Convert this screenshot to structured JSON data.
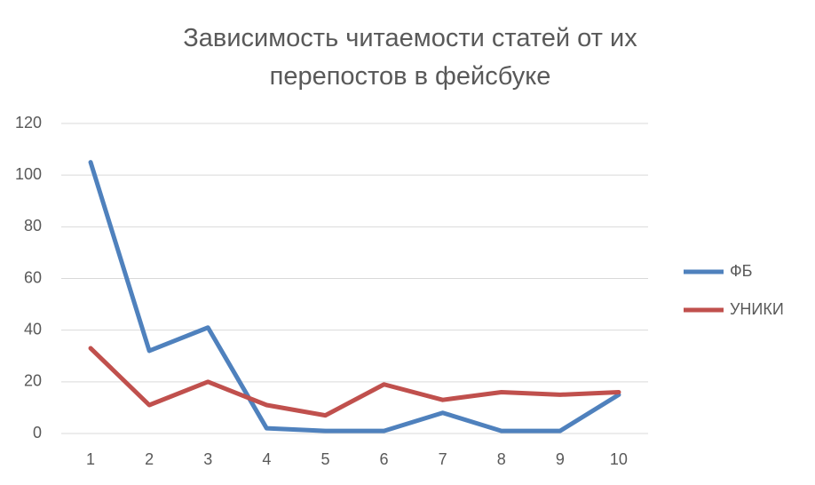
{
  "chart_data": {
    "type": "line",
    "title": "Зависимость читаемости статей от их перепостов в фейсбуке",
    "categories": [
      "1",
      "2",
      "3",
      "4",
      "5",
      "6",
      "7",
      "8",
      "9",
      "10"
    ],
    "series": [
      {
        "name": "ФБ",
        "color": "#4f81bd",
        "values": [
          105,
          32,
          41,
          2,
          1,
          1,
          8,
          1,
          1,
          15
        ]
      },
      {
        "name": "УНИКИ",
        "color": "#c0504d",
        "values": [
          33,
          11,
          20,
          11,
          7,
          19,
          13,
          16,
          15,
          16
        ]
      }
    ],
    "ylim": [
      0,
      120
    ],
    "yticks": [
      0,
      20,
      40,
      60,
      80,
      100,
      120
    ],
    "grid": true,
    "legend": "right"
  }
}
